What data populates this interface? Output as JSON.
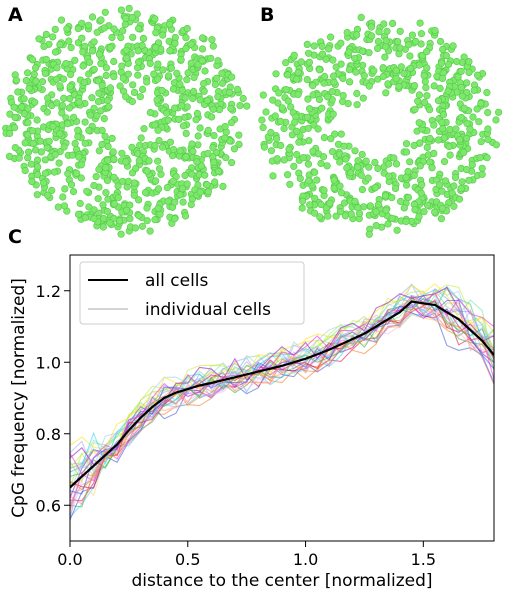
{
  "panels": {
    "a": "A",
    "b": "B",
    "c": "C"
  },
  "scatter_style": {
    "point_color": "#7de86b",
    "point_stroke": "#55c94a"
  },
  "chart_data": [
    {
      "type": "scatter",
      "panel": "A",
      "shape": "annulus with hollow center",
      "inner_radius_fraction": 0.2,
      "outer_radius_fraction": 1.0,
      "approx_point_count": 900
    },
    {
      "type": "scatter",
      "panel": "B",
      "shape": "annulus with hollow center",
      "inner_radius_fraction": 0.33,
      "outer_radius_fraction": 1.0,
      "approx_point_count": 750
    },
    {
      "type": "line",
      "panel": "C",
      "xlabel": "distance to the center [normalized]",
      "ylabel": "CpG frequency [normalized]",
      "xlim": [
        0.0,
        1.8
      ],
      "ylim": [
        0.5,
        1.3
      ],
      "xticks": [
        "0.0",
        "0.5",
        "1.0",
        "1.5"
      ],
      "xtick_values": [
        0.0,
        0.5,
        1.0,
        1.5
      ],
      "yticks": [
        "0.6",
        "0.8",
        "1.0",
        "1.2"
      ],
      "ytick_values": [
        0.6,
        0.8,
        1.0,
        1.2
      ],
      "legend": {
        "position": "top-left",
        "entries": [
          "all cells",
          "individual cells"
        ]
      },
      "mean_series": {
        "name": "all cells",
        "color": "#000000",
        "x": [
          0.0,
          0.05,
          0.1,
          0.15,
          0.2,
          0.25,
          0.3,
          0.35,
          0.4,
          0.45,
          0.5,
          0.55,
          0.6,
          0.65,
          0.7,
          0.75,
          0.8,
          0.85,
          0.9,
          0.95,
          1.0,
          1.05,
          1.1,
          1.15,
          1.2,
          1.25,
          1.3,
          1.35,
          1.4,
          1.45,
          1.5,
          1.55,
          1.6,
          1.65,
          1.7,
          1.75,
          1.8
        ],
        "y": [
          0.65,
          0.68,
          0.71,
          0.74,
          0.77,
          0.81,
          0.845,
          0.875,
          0.9,
          0.915,
          0.925,
          0.935,
          0.942,
          0.95,
          0.958,
          0.966,
          0.974,
          0.982,
          0.99,
          1.0,
          1.01,
          1.022,
          1.035,
          1.05,
          1.065,
          1.08,
          1.1,
          1.12,
          1.14,
          1.17,
          1.165,
          1.16,
          1.14,
          1.12,
          1.09,
          1.06,
          1.02
        ]
      },
      "individual_series_count": 30,
      "individual_colors": [
        "#e6194b",
        "#f58231",
        "#ffe119",
        "#bfef45",
        "#3cb44b",
        "#42d4f4",
        "#4363d8",
        "#911eb4",
        "#f032e6",
        "#a9a9f0",
        "#ff9f7f",
        "#7fdfa0",
        "#9fd0ff",
        "#ffb3e6",
        "#c9a0ff",
        "#ffd280",
        "#80e0e0",
        "#b0e060",
        "#ff8080",
        "#80a0ff"
      ],
      "individual_spread": 0.05
    }
  ]
}
